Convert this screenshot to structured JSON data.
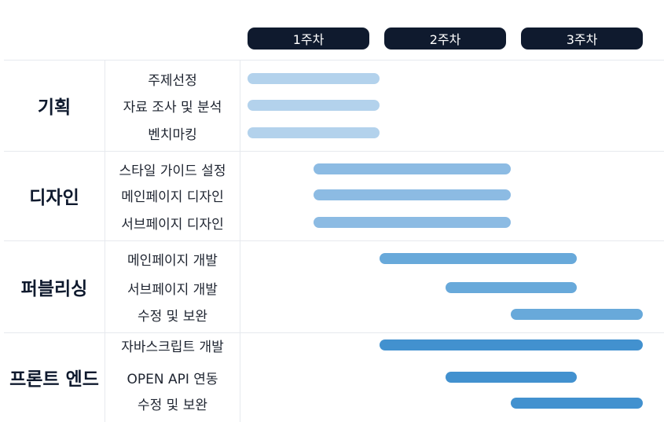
{
  "chart_data": {
    "type": "gantt",
    "weeks": [
      "1주차",
      "2주차",
      "3주차"
    ],
    "x_unit": "week",
    "x_range": [
      0,
      3
    ],
    "groups": [
      {
        "name": "기획",
        "color": "#b3d2ec",
        "tasks": [
          {
            "name": "주제선정",
            "start": 0,
            "end": 1
          },
          {
            "name": "자료 조사 및 분석",
            "start": 0,
            "end": 1
          },
          {
            "name": "벤치마킹",
            "start": 0,
            "end": 1
          }
        ]
      },
      {
        "name": "디자인",
        "color": "#8cbbe3",
        "tasks": [
          {
            "name": "스타일 가이드 설정",
            "start": 0.5,
            "end": 2
          },
          {
            "name": "메인페이지 디자인",
            "start": 0.5,
            "end": 2
          },
          {
            "name": "서브페이지 디자인",
            "start": 0.5,
            "end": 2
          }
        ]
      },
      {
        "name": "퍼블리싱",
        "color": "#68a9da",
        "tasks": [
          {
            "name": "메인페이지 개발",
            "start": 1,
            "end": 2.5
          },
          {
            "name": "서브페이지 개발",
            "start": 1.5,
            "end": 2.5
          },
          {
            "name": "수정 및 보완",
            "start": 2,
            "end": 3
          }
        ]
      },
      {
        "name": "프론트 엔드",
        "color": "#4291cf",
        "tasks": [
          {
            "name": "자바스크립트 개발",
            "start": 1,
            "end": 3
          },
          {
            "name": "OPEN API 연동",
            "start": 1.5,
            "end": 2.5
          },
          {
            "name": "수정 및 보완",
            "start": 2,
            "end": 3
          }
        ]
      }
    ]
  }
}
